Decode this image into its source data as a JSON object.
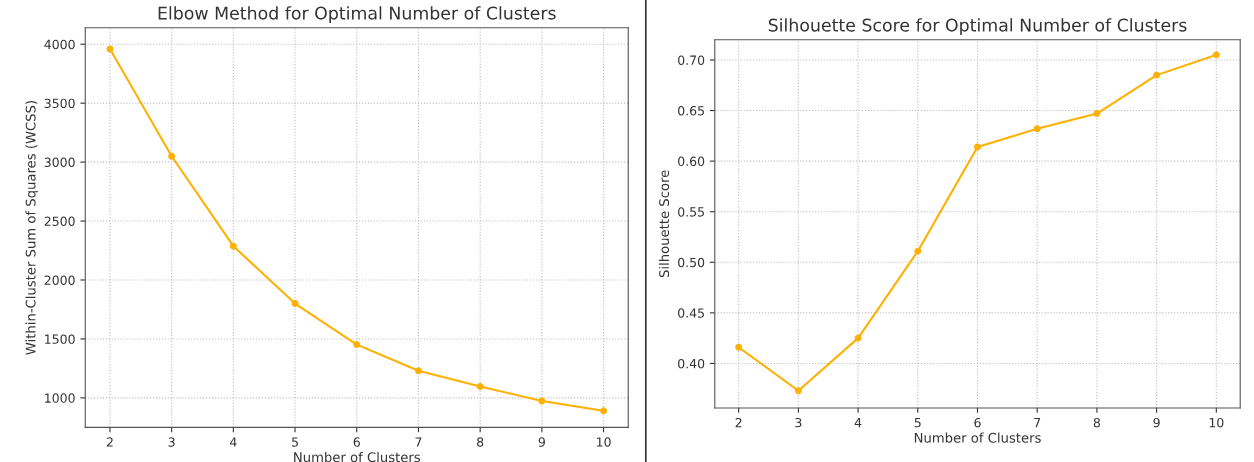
{
  "chart_data": [
    {
      "type": "line",
      "title": "Elbow Method for Optimal Number of Clusters",
      "xlabel": "Number of Clusters",
      "ylabel": "Within-Cluster Sum of Squares (WCSS)",
      "x": [
        2,
        3,
        4,
        5,
        6,
        7,
        8,
        9,
        10
      ],
      "series": [
        {
          "color": "#ffb000",
          "values": [
            3960,
            3050,
            2287,
            1800,
            1452,
            1230,
            1096,
            974,
            890
          ]
        }
      ],
      "xlim": [
        1.6,
        10.4
      ],
      "xticks": [
        2,
        3,
        4,
        5,
        6,
        7,
        8,
        9,
        10
      ],
      "ylim": [
        750,
        4140
      ],
      "yticks": [
        1000,
        1500,
        2000,
        2500,
        3000,
        3500,
        4000
      ],
      "grid": true,
      "marker": "circle",
      "line_style": "solid"
    },
    {
      "type": "line",
      "title": "Silhouette Score for Optimal Number of Clusters",
      "xlabel": "Number of Clusters",
      "ylabel": "Silhouette Score",
      "x": [
        2,
        3,
        4,
        5,
        6,
        7,
        8,
        9,
        10
      ],
      "series": [
        {
          "color": "#ffb000",
          "values": [
            0.416,
            0.373,
            0.425,
            0.511,
            0.614,
            0.632,
            0.647,
            0.685,
            0.705
          ]
        }
      ],
      "xlim": [
        1.6,
        10.4
      ],
      "xticks": [
        2,
        3,
        4,
        5,
        6,
        7,
        8,
        9,
        10
      ],
      "ylim": [
        0.356,
        0.72
      ],
      "yticks": [
        {
          "value": 0.4,
          "label": "0.40"
        },
        {
          "value": 0.45,
          "label": "0.45"
        },
        {
          "value": 0.5,
          "label": "0.50"
        },
        {
          "value": 0.55,
          "label": "0.55"
        },
        {
          "value": 0.6,
          "label": "0.60"
        },
        {
          "value": 0.65,
          "label": "0.65"
        },
        {
          "value": 0.7,
          "label": "0.70"
        }
      ],
      "grid": true,
      "marker": "circle",
      "line_style": "solid"
    }
  ]
}
